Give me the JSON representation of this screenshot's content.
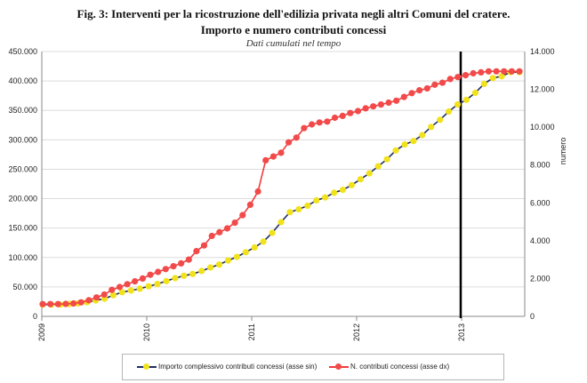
{
  "chart_data": {
    "type": "line",
    "title": "Fig. 3: Interventi per la ricostruzione dell'edilizia privata negli altri Comuni del cratere.",
    "subtitle": "Importo e numero contributi concessi",
    "note": "Dati cumulati nel tempo",
    "x_ticks": [
      "2009",
      "2010",
      "2011",
      "2012",
      "2013"
    ],
    "y_left": {
      "label": "",
      "range": [
        0,
        450000
      ],
      "ticks": [
        "0",
        "50.000",
        "100.000",
        "150.000",
        "200.000",
        "250.000",
        "300.000",
        "350.000",
        "400.000",
        "450.000"
      ]
    },
    "y_right": {
      "label": "numero",
      "range": [
        0,
        14000
      ],
      "ticks": [
        "0",
        "2.000",
        "4.000",
        "6.000",
        "8.000",
        "10.000",
        "12.000",
        "14.000"
      ]
    },
    "marker_line_at": "2013",
    "series": [
      {
        "name": "Importo complessivo contributi concessi (asse sin)",
        "axis": "left",
        "color": "#1f2d63",
        "marker": "#f2e21c",
        "values": [
          20000,
          20000,
          20000,
          21000,
          22000,
          24000,
          27000,
          30000,
          36000,
          41000,
          44000,
          47000,
          51000,
          55000,
          60000,
          65000,
          69000,
          72000,
          77000,
          83000,
          88000,
          95000,
          101000,
          109000,
          117000,
          127000,
          142000,
          160000,
          177000,
          182000,
          188000,
          197000,
          202000,
          210000,
          215000,
          223000,
          233000,
          243000,
          255000,
          267000,
          282000,
          292000,
          298000,
          308000,
          322000,
          334000,
          348000,
          360000,
          368000,
          380000,
          395000,
          405000,
          408000,
          415000,
          415000
        ]
      },
      {
        "name": "N. contributi concessi (asse dx)",
        "axis": "right",
        "color": "#f03c3c",
        "marker": "#f24a4a",
        "values": [
          650,
          650,
          650,
          660,
          680,
          740,
          850,
          1000,
          1150,
          1400,
          1550,
          1700,
          1850,
          2000,
          2200,
          2350,
          2500,
          2650,
          2800,
          3000,
          3450,
          3750,
          4250,
          4450,
          4650,
          4950,
          5350,
          5900,
          6600,
          8250,
          8450,
          8650,
          9200,
          9450,
          9950,
          10150,
          10250,
          10300,
          10500,
          10600,
          10750,
          10850,
          11000,
          11100,
          11200,
          11300,
          11400,
          11600,
          11800,
          11950,
          12050,
          12250,
          12350,
          12550,
          12650,
          12750,
          12850,
          12900,
          12950,
          12950,
          12950,
          12950,
          12950
        ]
      }
    ],
    "legend_position": "bottom"
  }
}
